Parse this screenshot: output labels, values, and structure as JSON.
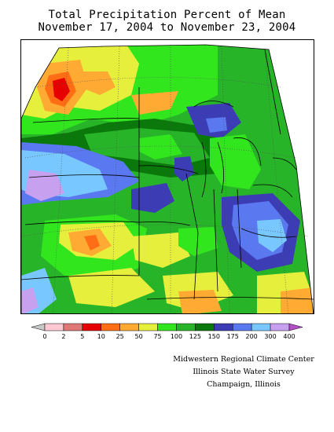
{
  "title": {
    "line1": "Total Precipitation Percent of Mean",
    "line2": "November 17, 2004 to November 23, 2004"
  },
  "legend": {
    "left_arrow_color": "#c8c8c8",
    "right_arrow_color": "#b44dc8",
    "bins": [
      {
        "color": "#ffc8d2",
        "label": "0"
      },
      {
        "color": "#e07878",
        "label": "2"
      },
      {
        "color": "#e60000",
        "label": "5"
      },
      {
        "color": "#ff6e14",
        "label": "10"
      },
      {
        "color": "#ffaa32",
        "label": "25"
      },
      {
        "color": "#e6f03c",
        "label": "50"
      },
      {
        "color": "#32e61e",
        "label": "75"
      },
      {
        "color": "#28b428",
        "label": "100"
      },
      {
        "color": "#0a780a",
        "label": "125"
      },
      {
        "color": "#3c3cb4",
        "label": "150"
      },
      {
        "color": "#5a78f0",
        "label": "175"
      },
      {
        "color": "#78c8ff",
        "label": "200"
      },
      {
        "color": "#c8a0f0",
        "label": "300"
      }
    ],
    "last_label": "400"
  },
  "credits": {
    "line1": "Midwestern Regional Climate Center",
    "line2": "Illinois State Water Survey",
    "line3": "Champaign, Illinois"
  }
}
